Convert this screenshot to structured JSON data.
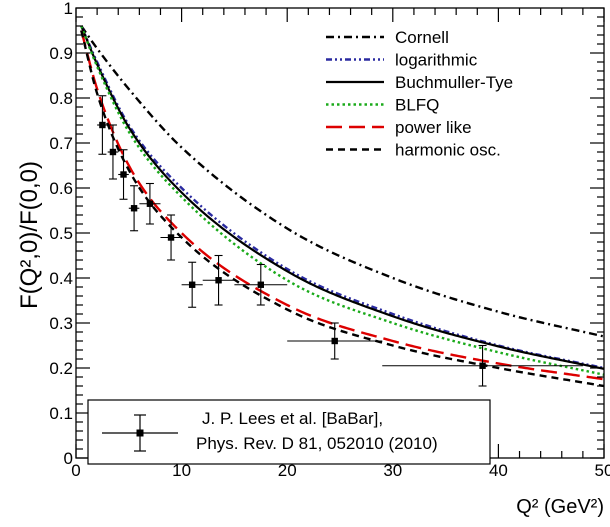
{
  "chart_data": {
    "type": "line",
    "xlabel": "Q² (GeV²)",
    "ylabel": "F(Q²,0)/F(0,0)",
    "xlim": [
      0,
      50
    ],
    "ylim": [
      0,
      1
    ],
    "x_ticks": [
      "0",
      "10",
      "20",
      "30",
      "40",
      "50"
    ],
    "y_ticks": [
      "0",
      "0.1",
      "0.2",
      "0.3",
      "0.4",
      "0.5",
      "0.6",
      "0.7",
      "0.8",
      "0.9",
      "1"
    ],
    "grid": false,
    "legend_position": "top-right",
    "series": [
      {
        "name": "Cornell",
        "color": "#000000",
        "style": "dash-dot",
        "x": [
          0.5,
          2,
          5,
          10,
          20,
          30,
          40,
          50
        ],
        "y": [
          0.96,
          0.91,
          0.82,
          0.69,
          0.51,
          0.4,
          0.325,
          0.27
        ]
      },
      {
        "name": "logarithmic",
        "color": "#2a2aa0",
        "style": "dash-dot-dot",
        "x": [
          0.5,
          2,
          5,
          10,
          20,
          30,
          40,
          50
        ],
        "y": [
          0.96,
          0.88,
          0.74,
          0.6,
          0.42,
          0.32,
          0.25,
          0.2
        ]
      },
      {
        "name": "Buchmuller-Tye",
        "color": "#000000",
        "style": "solid",
        "x": [
          0.5,
          2,
          5,
          10,
          20,
          30,
          40,
          50
        ],
        "y": [
          0.96,
          0.875,
          0.735,
          0.59,
          0.415,
          0.315,
          0.248,
          0.198
        ]
      },
      {
        "name": "BLFQ",
        "color": "#1aaa1a",
        "style": "dotted",
        "x": [
          0.5,
          2,
          5,
          10,
          20,
          30,
          40,
          50
        ],
        "y": [
          0.96,
          0.87,
          0.725,
          0.58,
          0.395,
          0.3,
          0.235,
          0.185
        ]
      },
      {
        "name": "power like",
        "color": "#dd0000",
        "style": "long-dash",
        "x": [
          0.5,
          2,
          5,
          10,
          20,
          30,
          40,
          50
        ],
        "y": [
          0.95,
          0.82,
          0.65,
          0.5,
          0.34,
          0.26,
          0.21,
          0.175
        ]
      },
      {
        "name": "harmonic osc.",
        "color": "#000000",
        "style": "dashed",
        "x": [
          0.5,
          2,
          5,
          10,
          20,
          30,
          40,
          50
        ],
        "y": [
          0.95,
          0.81,
          0.64,
          0.49,
          0.33,
          0.25,
          0.2,
          0.16
        ]
      }
    ],
    "data_points": {
      "name_line1": "J. P. Lees et al. [BaBar],",
      "name_line2": "Phys. Rev. D 81, 052010 (2010)",
      "points": [
        {
          "x": 2.5,
          "y": 0.74,
          "xerr": 0.5,
          "yerr": 0.065
        },
        {
          "x": 3.5,
          "y": 0.68,
          "xerr": 0.5,
          "yerr": 0.06
        },
        {
          "x": 4.5,
          "y": 0.63,
          "xerr": 0.5,
          "yerr": 0.055
        },
        {
          "x": 5.5,
          "y": 0.555,
          "xerr": 0.5,
          "yerr": 0.05
        },
        {
          "x": 7.0,
          "y": 0.565,
          "xerr": 1.0,
          "yerr": 0.045
        },
        {
          "x": 9.0,
          "y": 0.49,
          "xerr": 1.0,
          "yerr": 0.05
        },
        {
          "x": 11.0,
          "y": 0.385,
          "xerr": 1.0,
          "yerr": 0.05
        },
        {
          "x": 13.5,
          "y": 0.395,
          "xerr": 1.5,
          "yerr": 0.055
        },
        {
          "x": 17.5,
          "y": 0.385,
          "xerr": 2.5,
          "yerr": 0.045
        },
        {
          "x": 24.5,
          "y": 0.26,
          "xerr": 4.5,
          "yerr": 0.04
        },
        {
          "x": 38.5,
          "y": 0.205,
          "xerr": 9.5,
          "yerr": 0.045
        }
      ]
    }
  }
}
